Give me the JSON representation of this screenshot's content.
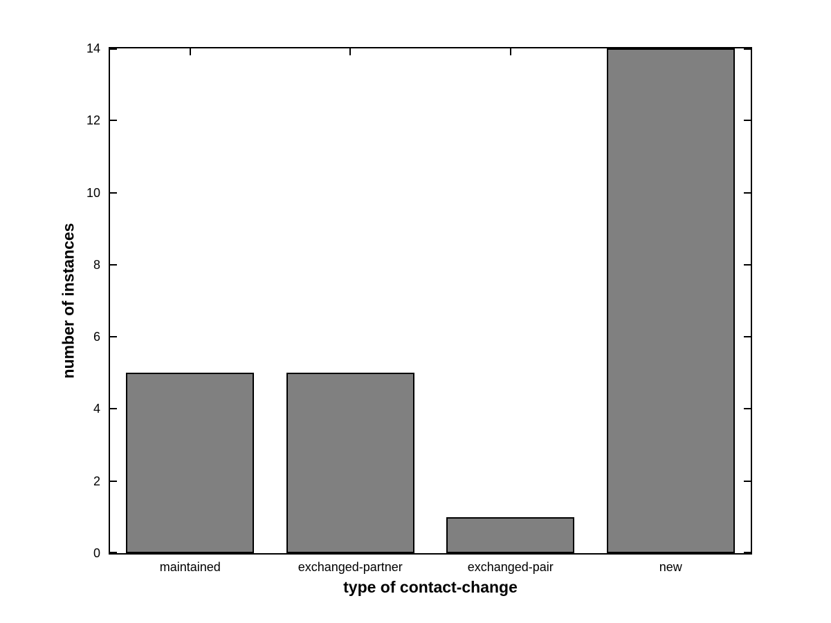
{
  "chart_data": {
    "type": "bar",
    "categories": [
      "maintained",
      "exchanged-partner",
      "exchanged-pair",
      "new"
    ],
    "values": [
      5,
      5,
      1,
      14
    ],
    "xlabel": "type of contact-change",
    "ylabel": "number of instances",
    "ylim": [
      0,
      14
    ],
    "yticks": [
      0,
      2,
      4,
      6,
      8,
      10,
      12,
      14
    ],
    "bar_width_fraction": 0.8,
    "bar_fill_color": "#808080",
    "bar_edge_color": "#000000",
    "axis_color": "#000000",
    "background_color": "#ffffff",
    "grid": false,
    "legend": null,
    "title": ""
  }
}
